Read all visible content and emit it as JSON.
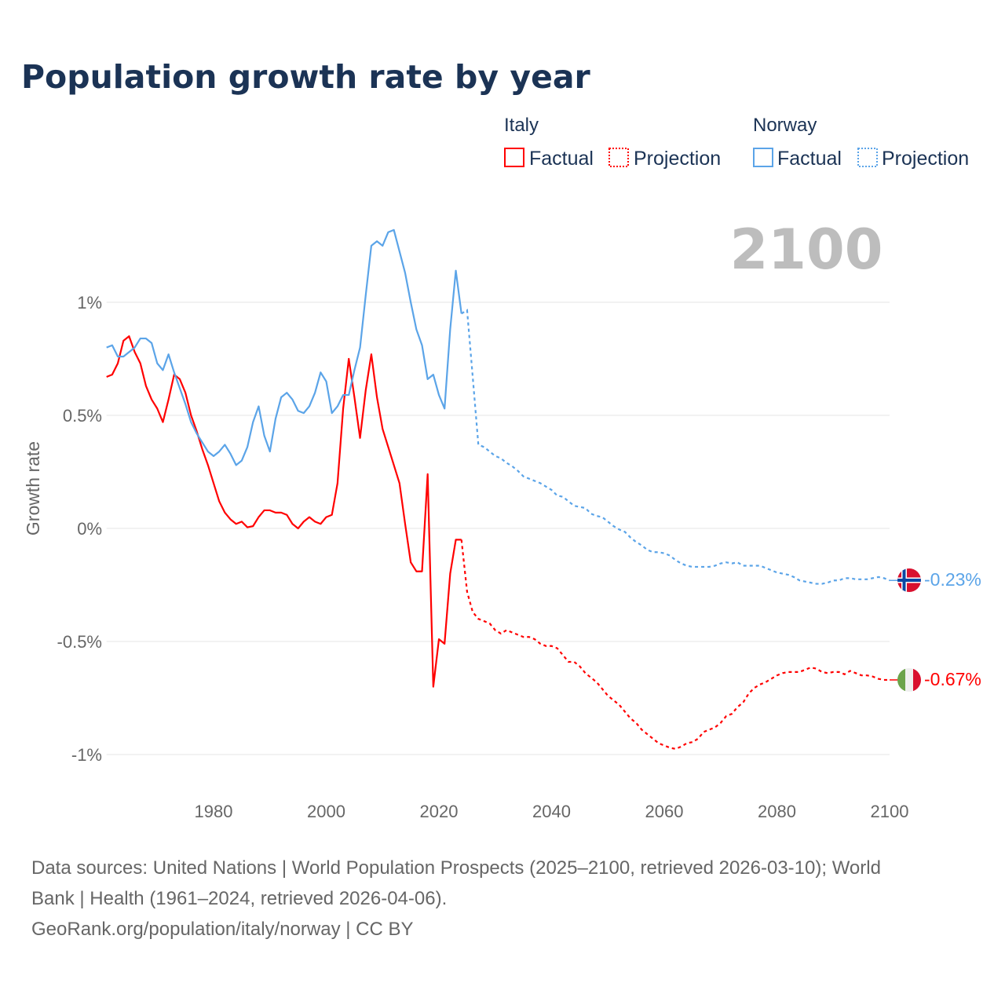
{
  "title": "Population growth rate by year",
  "legend": {
    "groups": [
      {
        "name": "Italy",
        "factual": "Factual",
        "projection": "Projection"
      },
      {
        "name": "Norway",
        "factual": "Factual",
        "projection": "Projection"
      }
    ]
  },
  "current_year": "2100",
  "footer": {
    "line1": "Data sources: United Nations | World Population Prospects (2025–2100, retrieved 2026-03-10); World",
    "line2": "Bank | Health (1961–2024, retrieved 2026-04-06).",
    "line3": "GeoRank.org/population/italy/norway | CC BY"
  },
  "chart_data": {
    "type": "line",
    "title": "Population growth rate by year",
    "xlabel": "",
    "ylabel": "Growth rate",
    "xlim": [
      1961,
      2100
    ],
    "ylim": [
      -1.1,
      1.4
    ],
    "x_ticks": [
      1980,
      2000,
      2020,
      2040,
      2060,
      2080,
      2100
    ],
    "x_tick_labels": [
      "1980",
      "2000",
      "2020",
      "2040",
      "2060",
      "2080",
      "2100"
    ],
    "y_ticks": [
      1,
      0.5,
      0,
      -0.5,
      -1
    ],
    "y_tick_labels": [
      "1%",
      "0.5%",
      "0%",
      "-0.5%",
      "-1%"
    ],
    "grid": true,
    "legend_position": "top-right",
    "series": [
      {
        "name": "Italy",
        "color": "#ff0000",
        "end_label": "-0.67%",
        "flag": "italy-flag",
        "factual_start": 1961,
        "factual": [
          0.67,
          0.68,
          0.73,
          0.83,
          0.85,
          0.78,
          0.73,
          0.63,
          0.57,
          0.53,
          0.47,
          0.57,
          0.68,
          0.66,
          0.6,
          0.5,
          0.43,
          0.35,
          0.28,
          0.2,
          0.12,
          0.07,
          0.04,
          0.02,
          0.03,
          0.005,
          0.01,
          0.05,
          0.08,
          0.08,
          0.07,
          0.07,
          0.06,
          0.02,
          0.0,
          0.03,
          0.05,
          0.03,
          0.02,
          0.05,
          0.06,
          0.2,
          0.53,
          0.75,
          0.58,
          0.4,
          0.61,
          0.77,
          0.58,
          0.44,
          0.36,
          0.28,
          0.2,
          0.02,
          -0.15,
          -0.19,
          -0.19,
          0.24,
          -0.7,
          -0.49,
          -0.51,
          -0.2,
          -0.05,
          -0.05
        ],
        "projection_start": 2025,
        "projection": [
          -0.28,
          -0.37,
          -0.4,
          -0.41,
          -0.42,
          -0.45,
          -0.465,
          -0.45,
          -0.46,
          -0.47,
          -0.48,
          -0.48,
          -0.49,
          -0.51,
          -0.52,
          -0.52,
          -0.53,
          -0.56,
          -0.59,
          -0.59,
          -0.61,
          -0.64,
          -0.66,
          -0.68,
          -0.71,
          -0.74,
          -0.76,
          -0.78,
          -0.81,
          -0.84,
          -0.86,
          -0.89,
          -0.91,
          -0.93,
          -0.95,
          -0.96,
          -0.97,
          -0.975,
          -0.965,
          -0.95,
          -0.945,
          -0.93,
          -0.9,
          -0.89,
          -0.88,
          -0.86,
          -0.83,
          -0.82,
          -0.79,
          -0.77,
          -0.73,
          -0.705,
          -0.69,
          -0.68,
          -0.665,
          -0.65,
          -0.64,
          -0.635,
          -0.635,
          -0.635,
          -0.625,
          -0.615,
          -0.62,
          -0.635,
          -0.64,
          -0.635,
          -0.635,
          -0.645,
          -0.63,
          -0.64,
          -0.65,
          -0.65,
          -0.655,
          -0.665,
          -0.67,
          -0.67
        ]
      },
      {
        "name": "Norway",
        "color": "#5ba4e8",
        "end_label": "-0.23%",
        "flag": "norway-flag",
        "factual_start": 1961,
        "factual": [
          0.8,
          0.81,
          0.76,
          0.76,
          0.78,
          0.8,
          0.84,
          0.84,
          0.82,
          0.73,
          0.7,
          0.77,
          0.69,
          0.62,
          0.55,
          0.47,
          0.42,
          0.38,
          0.34,
          0.32,
          0.34,
          0.37,
          0.33,
          0.28,
          0.3,
          0.36,
          0.47,
          0.54,
          0.41,
          0.34,
          0.485,
          0.58,
          0.6,
          0.57,
          0.52,
          0.51,
          0.54,
          0.6,
          0.69,
          0.65,
          0.51,
          0.54,
          0.59,
          0.59,
          0.7,
          0.8,
          1.03,
          1.25,
          1.27,
          1.25,
          1.31,
          1.32,
          1.225,
          1.13,
          1.0,
          0.88,
          0.81,
          0.66,
          0.68,
          0.59,
          0.53,
          0.88,
          1.14,
          0.95
        ],
        "projection_start": 2025,
        "projection": [
          0.965,
          0.67,
          0.37,
          0.36,
          0.34,
          0.32,
          0.31,
          0.29,
          0.275,
          0.255,
          0.23,
          0.22,
          0.21,
          0.2,
          0.185,
          0.17,
          0.145,
          0.14,
          0.12,
          0.1,
          0.095,
          0.09,
          0.065,
          0.055,
          0.05,
          0.03,
          0.01,
          -0.005,
          -0.015,
          -0.04,
          -0.06,
          -0.075,
          -0.095,
          -0.105,
          -0.105,
          -0.11,
          -0.12,
          -0.14,
          -0.155,
          -0.165,
          -0.17,
          -0.17,
          -0.17,
          -0.17,
          -0.165,
          -0.155,
          -0.15,
          -0.155,
          -0.15,
          -0.165,
          -0.165,
          -0.165,
          -0.165,
          -0.175,
          -0.185,
          -0.195,
          -0.2,
          -0.205,
          -0.215,
          -0.23,
          -0.235,
          -0.24,
          -0.245,
          -0.245,
          -0.24,
          -0.23,
          -0.23,
          -0.22,
          -0.22,
          -0.225,
          -0.225,
          -0.225,
          -0.22,
          -0.215,
          -0.22,
          -0.23
        ]
      }
    ]
  }
}
